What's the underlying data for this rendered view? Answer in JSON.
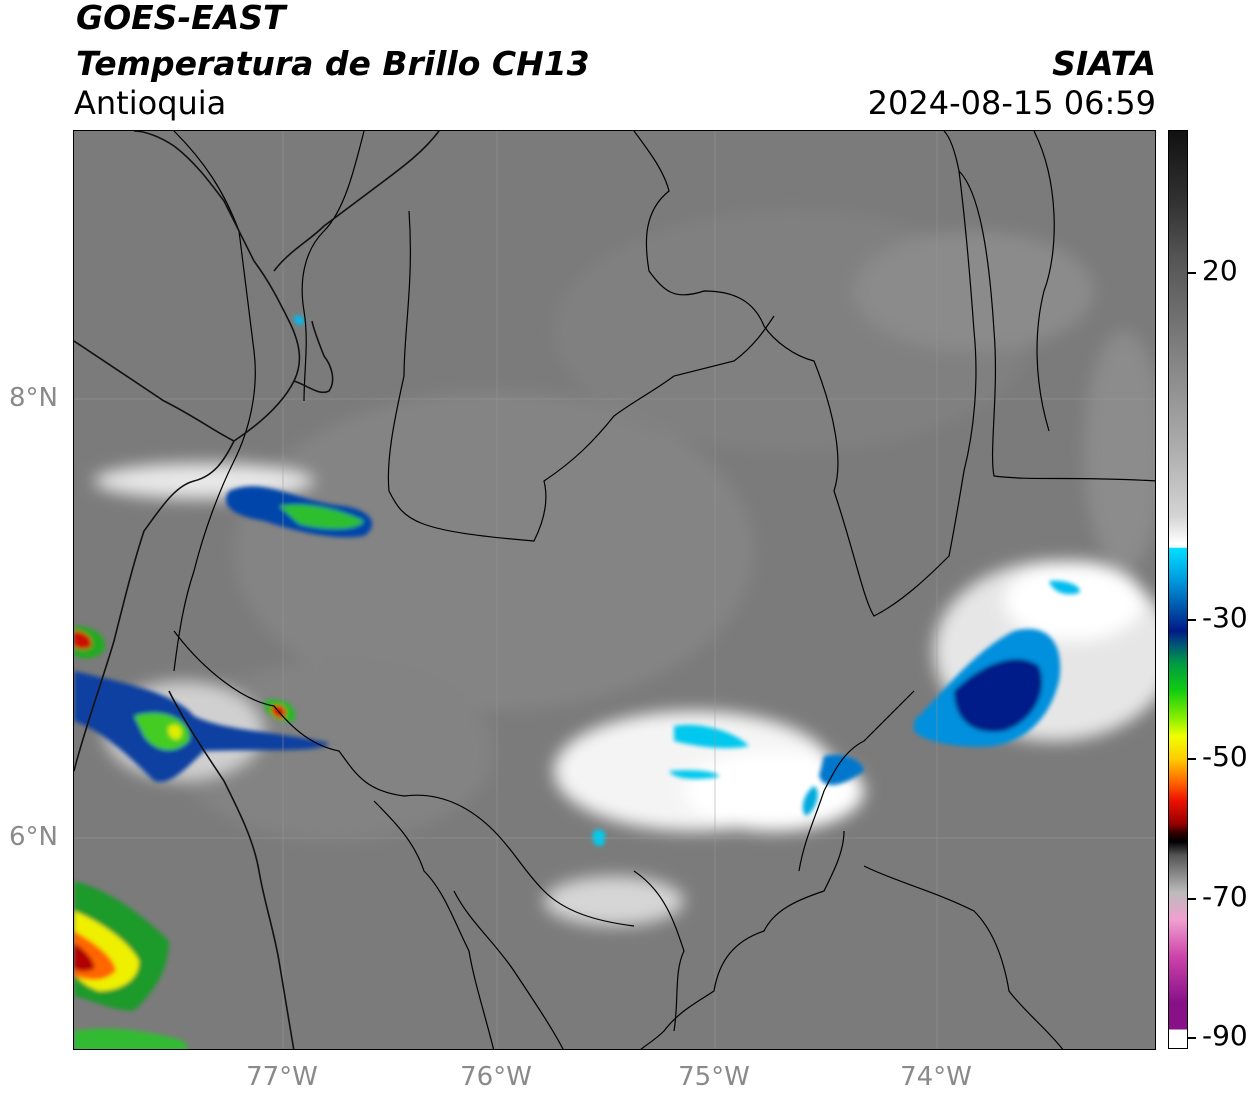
{
  "header": {
    "satellite": "GOES-EAST",
    "product": "Temperatura de Brillo CH13",
    "region": "Antioquia",
    "organization": "SIATA",
    "timestamp": "2024-08-15 06:59"
  },
  "map": {
    "extent": {
      "lon_min": -77.9,
      "lon_max": -73.1,
      "lat_min": 5.0,
      "lat_max": 8.9
    },
    "lat_ticks": [
      {
        "value": 8,
        "label": "8°N"
      },
      {
        "value": 6,
        "label": "6°N"
      }
    ],
    "lon_ticks": [
      {
        "value": -77,
        "label": "77°W"
      },
      {
        "value": -76,
        "label": "76°W"
      },
      {
        "value": -75,
        "label": "75°W"
      },
      {
        "value": -74,
        "label": "74°W"
      }
    ],
    "background_color": "#7b7b7b",
    "gridlines": true
  },
  "colorbar": {
    "min": -90,
    "max": 45,
    "ticks": [
      {
        "value": 20,
        "label": "20"
      },
      {
        "value": -30,
        "label": "-30"
      },
      {
        "value": -50,
        "label": "-50"
      },
      {
        "value": -70,
        "label": "-70"
      },
      {
        "value": -90,
        "label": "-90"
      }
    ]
  }
}
